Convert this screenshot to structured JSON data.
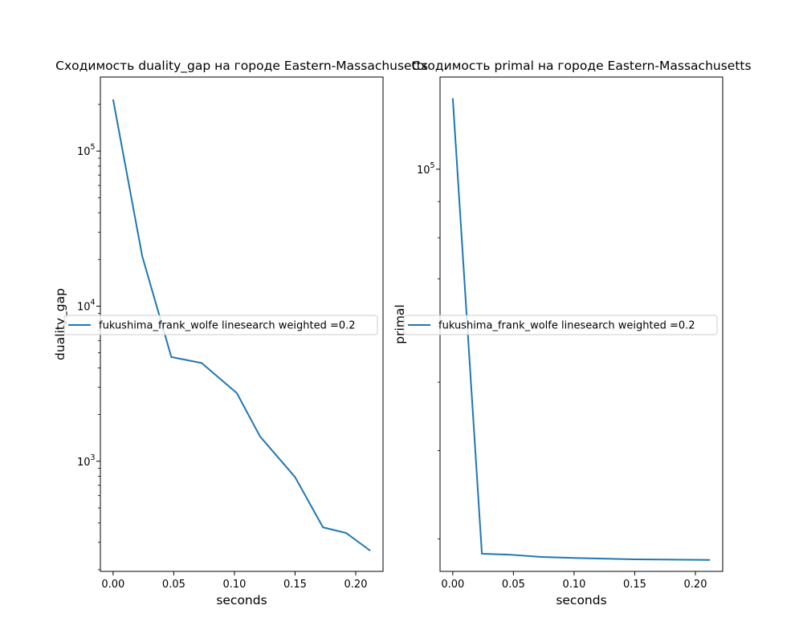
{
  "chart_data": [
    {
      "type": "line",
      "title": "Сходимость duality_gap на городе Eastern-Massachusetts",
      "xlabel": "seconds",
      "ylabel": "duality_gap",
      "yscale": "log",
      "xlim": [
        -0.0105,
        0.2225
      ],
      "ylim": [
        195,
        300000
      ],
      "xticks": [
        "0.00",
        "0.05",
        "0.10",
        "0.15",
        "0.20"
      ],
      "xtick_values": [
        0,
        0.05,
        0.1,
        0.15,
        0.2
      ],
      "yticks": [
        {
          "base": "10",
          "exp": "3",
          "value": 1000
        },
        {
          "base": "10",
          "exp": "4",
          "value": 10000
        },
        {
          "base": "10",
          "exp": "5",
          "value": 100000
        }
      ],
      "legend": {
        "position": "center-right",
        "entries": [
          "fukushima_frank_wolfe linesearch weighted =0.2"
        ]
      },
      "grid": false,
      "series": [
        {
          "name": "fukushima_frank_wolfe linesearch weighted =0.2",
          "color": "#1f77b4",
          "x": [
            0.0,
            0.024,
            0.048,
            0.073,
            0.102,
            0.121,
            0.15,
            0.173,
            0.192,
            0.212
          ],
          "y": [
            215000,
            21000,
            4700,
            4300,
            2750,
            1450,
            790,
            375,
            345,
            265
          ]
        }
      ]
    },
    {
      "type": "line",
      "title": "Сходимость primal на городе Eastern-Massachusetts",
      "xlabel": "seconds",
      "ylabel": "primal",
      "yscale": "log",
      "xlim": [
        -0.0105,
        0.2225
      ],
      "ylim": [
        27000,
        135000
      ],
      "xticks": [
        "0.00",
        "0.05",
        "0.10",
        "0.15",
        "0.20"
      ],
      "xtick_values": [
        0,
        0.05,
        0.1,
        0.15,
        0.2
      ],
      "yticks": [
        {
          "base": "10",
          "exp": "5",
          "value": 100000
        }
      ],
      "yminor_ticks": [
        30000,
        40000,
        50000,
        60000,
        70000,
        80000,
        90000
      ],
      "legend": {
        "position": "center-right",
        "entries": [
          "fukushima_frank_wolfe linesearch weighted =0.2"
        ]
      },
      "grid": false,
      "series": [
        {
          "name": "fukushima_frank_wolfe linesearch weighted =0.2",
          "color": "#1f77b4",
          "x": [
            0.0,
            0.024,
            0.048,
            0.073,
            0.102,
            0.121,
            0.15,
            0.173,
            0.192,
            0.212
          ],
          "y": [
            126000,
            28600,
            28500,
            28300,
            28200,
            28150,
            28080,
            28060,
            28040,
            28020
          ]
        }
      ]
    }
  ]
}
